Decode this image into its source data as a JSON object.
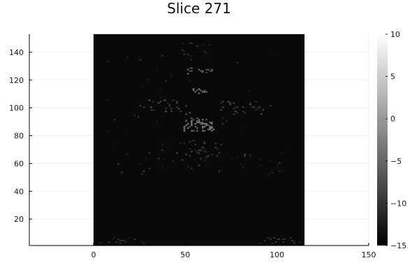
{
  "chart_data": {
    "type": "heatmap",
    "title": "Slice 271",
    "xlabel": "",
    "ylabel": "",
    "xlim": [
      -35,
      150
    ],
    "ylim": [
      1,
      153
    ],
    "x_ticks": [
      0,
      50,
      100,
      150
    ],
    "y_ticks": [
      20,
      40,
      60,
      80,
      100,
      120,
      140
    ],
    "image_extent": {
      "x": [
        0,
        115
      ],
      "y": [
        1,
        153
      ]
    },
    "grid": true,
    "colormap": "grayscale",
    "background_value": -14,
    "colorbar": {
      "min": -15,
      "max": 10,
      "ticks": [
        10,
        5,
        0,
        -5,
        -10,
        -15
      ],
      "tick_labels": [
        "10",
        "5",
        "0",
        "−5",
        "−10",
        "−15"
      ],
      "low_color": "#000000",
      "high_color": "#ffffff"
    },
    "features": [
      {
        "x": 57,
        "y": 87,
        "spread_x": 8,
        "spread_y": 5,
        "value": -4,
        "count": 60
      },
      {
        "x": 57,
        "y": 112,
        "spread_x": 4,
        "spread_y": 2,
        "value": -5,
        "count": 14
      },
      {
        "x": 57,
        "y": 126,
        "spread_x": 7,
        "spread_y": 2,
        "value": -7,
        "count": 16
      },
      {
        "x": 38,
        "y": 100,
        "spread_x": 14,
        "spread_y": 5,
        "value": -9,
        "count": 28
      },
      {
        "x": 82,
        "y": 100,
        "spread_x": 14,
        "spread_y": 5,
        "value": -9,
        "count": 28
      },
      {
        "x": 57,
        "y": 70,
        "spread_x": 12,
        "spread_y": 6,
        "value": -10,
        "count": 30
      },
      {
        "x": 57,
        "y": 140,
        "spread_x": 10,
        "spread_y": 6,
        "value": -11,
        "count": 14
      },
      {
        "x": 57,
        "y": 60,
        "spread_x": 45,
        "spread_y": 8,
        "value": -11,
        "count": 40
      },
      {
        "x": 15,
        "y": 4,
        "spread_x": 12,
        "spread_y": 2,
        "value": -11,
        "count": 20
      },
      {
        "x": 100,
        "y": 4,
        "spread_x": 12,
        "spread_y": 2,
        "value": -11,
        "count": 20
      },
      {
        "x": 57,
        "y": 100,
        "spread_x": 50,
        "spread_y": 40,
        "value": -12,
        "count": 50
      }
    ]
  }
}
